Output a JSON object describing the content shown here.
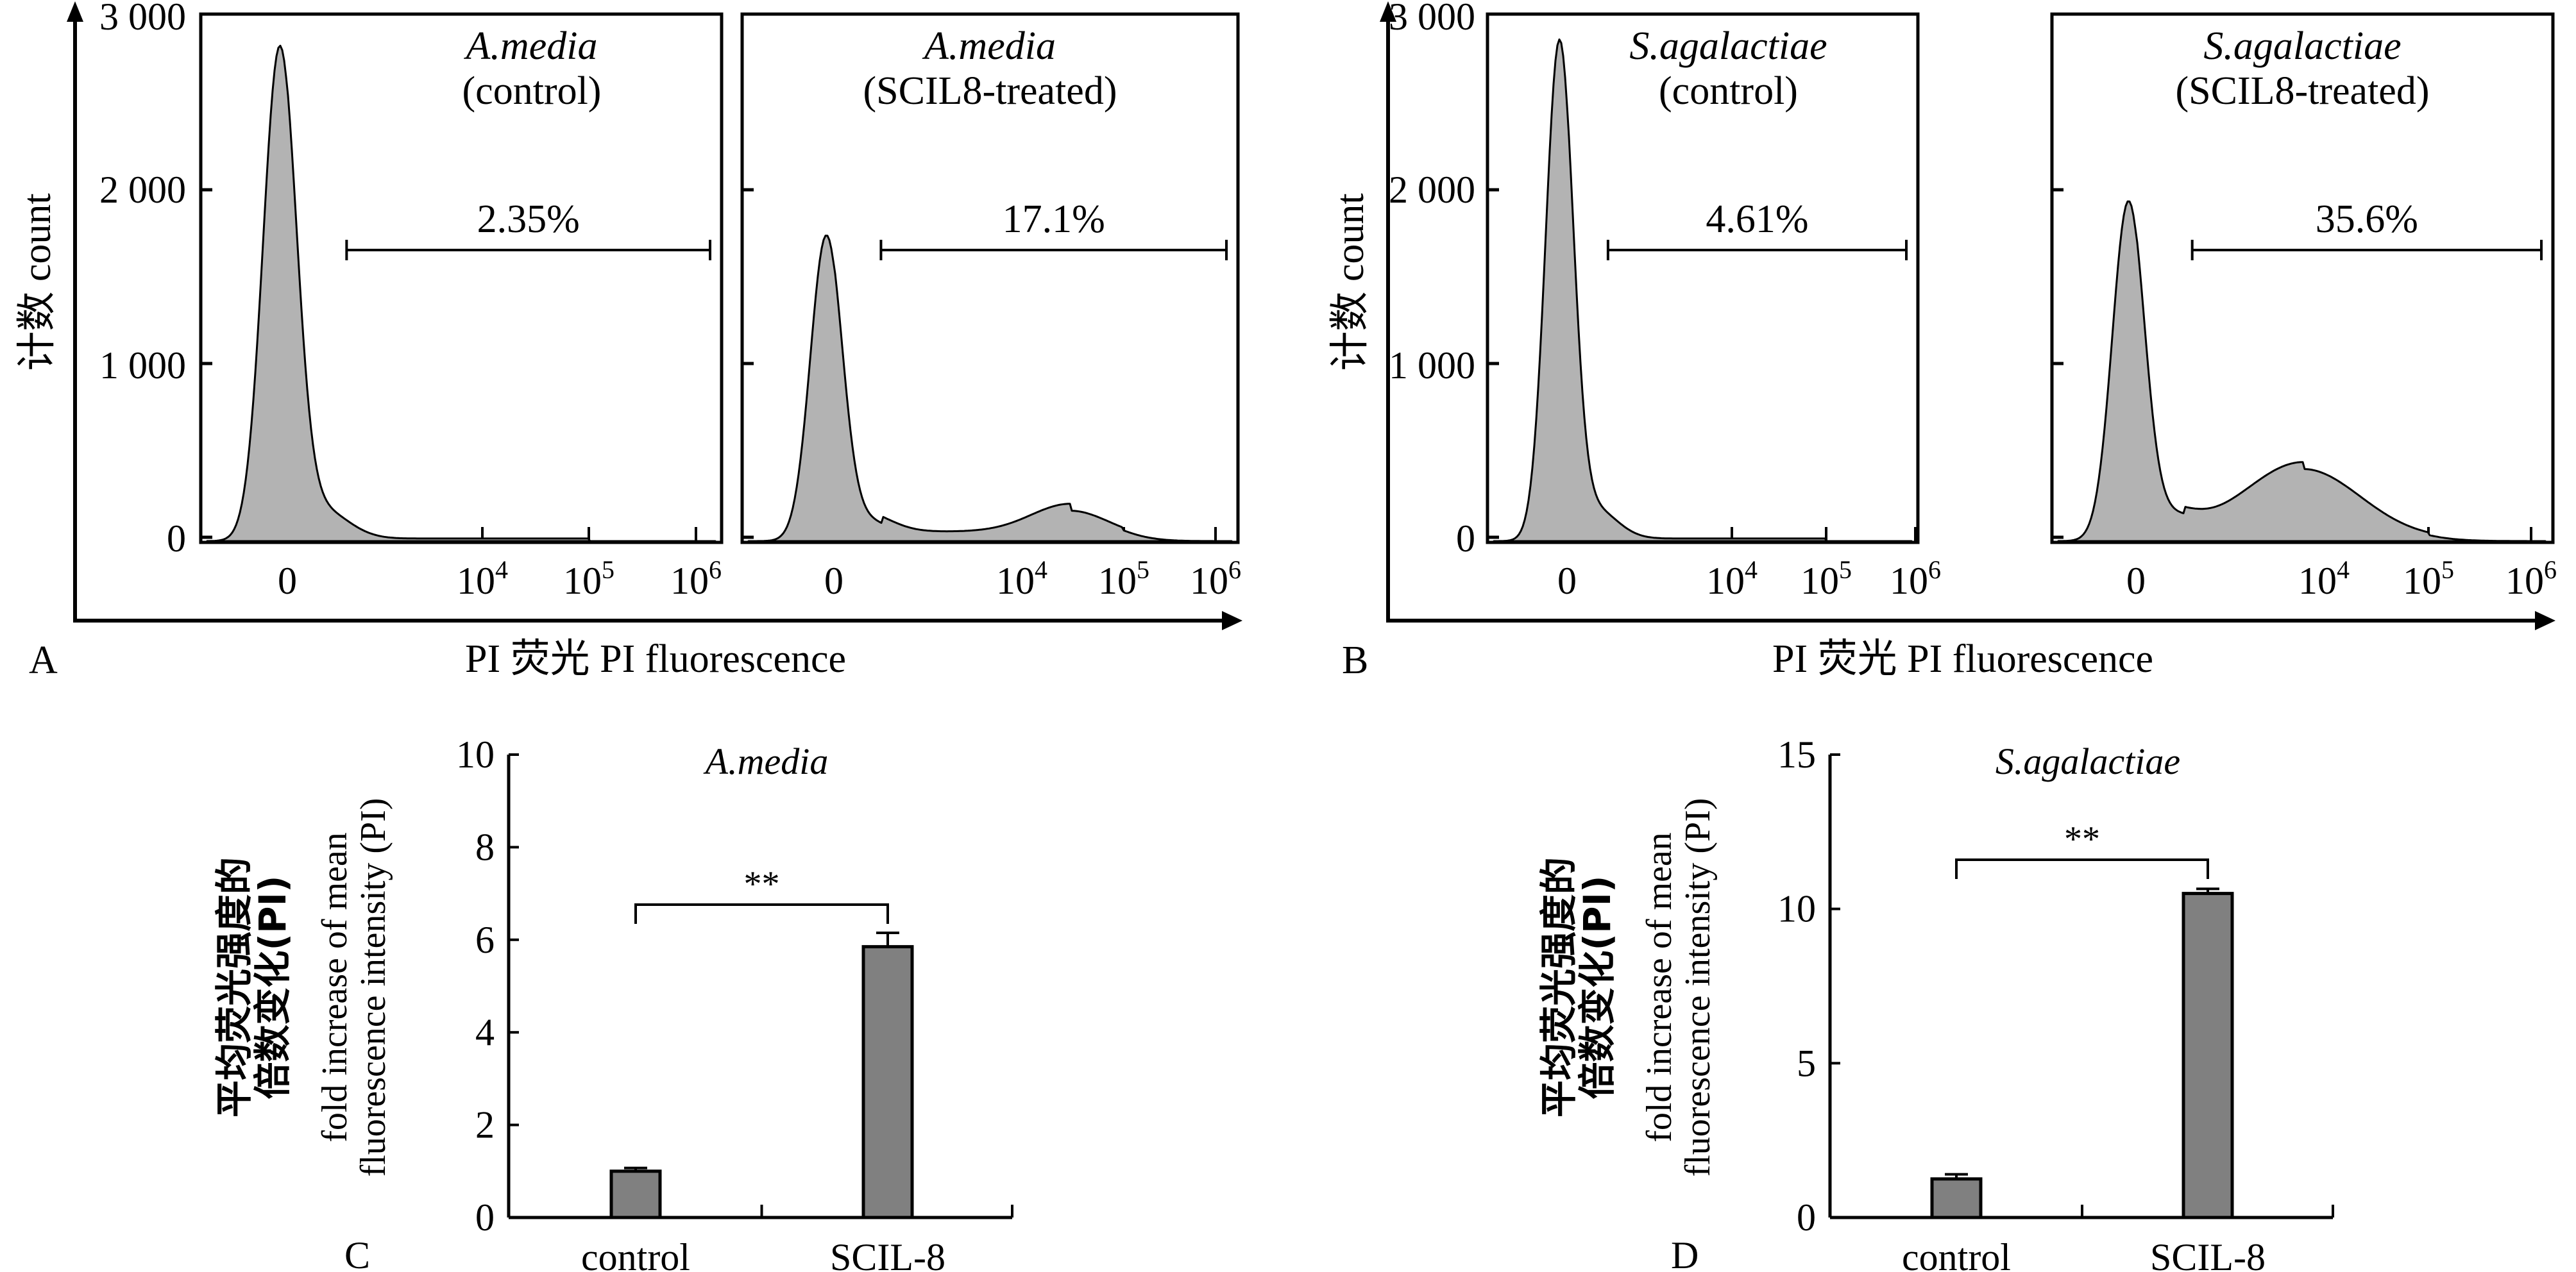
{
  "figure": {
    "panel_letters": [
      "A",
      "B",
      "C",
      "D"
    ],
    "count_axis_label": "计数 count",
    "fluor_axis_label": "PI 荧光 PI fluorescence",
    "bar_ylabel_cn_line1": "平均荧光强度的",
    "bar_ylabel_cn_line2": "倍数变化(PI)",
    "bar_ylabel_en_line1": "fold increase of mean",
    "bar_ylabel_en_line2": "fluorescence intensity (PI)"
  },
  "chart_data": [
    {
      "type": "area",
      "panel": "A",
      "histograms": [
        {
          "title_species": "A.media",
          "title_condition": "(control)",
          "gate_label": "2.35%",
          "gate_percent": 2.35,
          "peak_count": 2800,
          "peak_position": "0",
          "second_peak": null
        },
        {
          "title_species": "A.media",
          "title_condition": "(SCIL8-treated)",
          "gate_label": "17.1%",
          "gate_percent": 17.1,
          "peak_count": 1730,
          "peak_position": "0",
          "second_peak": {
            "position_log10": 4.5,
            "count": 160
          }
        }
      ],
      "y_ticks": [
        "0",
        "1 000",
        "2 000",
        "3 000"
      ],
      "ylim": [
        0,
        3000
      ],
      "x_ticks": [
        "0",
        "10",
        "10",
        "10"
      ],
      "x_tick_exponents": [
        "",
        "4",
        "5",
        "6"
      ],
      "xlabel": "PI 荧光 PI fluorescence",
      "ylabel": "计数 count"
    },
    {
      "type": "area",
      "panel": "B",
      "histograms": [
        {
          "title_species": "S.agalactiae",
          "title_condition": "(control)",
          "gate_label": "4.61%",
          "gate_percent": 4.61,
          "peak_count": 2840,
          "peak_position": "0",
          "second_peak": null
        },
        {
          "title_species": "S.agalactiae",
          "title_condition": "(SCIL8-treated)",
          "gate_label": "35.6%",
          "gate_percent": 35.6,
          "peak_count": 1920,
          "peak_position": "0",
          "second_peak": {
            "position_log10": 3.8,
            "count": 400
          }
        }
      ],
      "y_ticks": [
        "0",
        "1 000",
        "2 000",
        "3 000"
      ],
      "ylim": [
        0,
        3000
      ],
      "x_ticks": [
        "0",
        "10",
        "10",
        "10"
      ],
      "x_tick_exponents": [
        "",
        "4",
        "5",
        "6"
      ],
      "xlabel": "PI 荧光 PI fluorescence",
      "ylabel": "计数 count"
    },
    {
      "type": "bar",
      "panel": "C",
      "title": "A.media",
      "categories": [
        "control",
        "SCIL-8"
      ],
      "values": [
        1.0,
        5.85
      ],
      "errors": [
        0.07,
        0.3
      ],
      "ylim": [
        0,
        10
      ],
      "y_ticks": [
        "0",
        "2",
        "4",
        "6",
        "8",
        "10"
      ],
      "y_tick_values": [
        0,
        2,
        4,
        6,
        8,
        10
      ],
      "significance": "**",
      "bar_color": "#808080"
    },
    {
      "type": "bar",
      "panel": "D",
      "title": "S.agalactiae",
      "categories": [
        "control",
        "SCIL-8"
      ],
      "values": [
        1.25,
        10.5
      ],
      "errors": [
        0.15,
        0.15
      ],
      "ylim": [
        0,
        15
      ],
      "y_ticks": [
        "0",
        "5",
        "10",
        "15"
      ],
      "y_tick_values": [
        0,
        5,
        10,
        15
      ],
      "significance": "**",
      "bar_color": "#808080"
    }
  ],
  "colors": {
    "hist_fill": "#b3b3b3",
    "line": "#000000",
    "bar_fill": "#808080"
  }
}
